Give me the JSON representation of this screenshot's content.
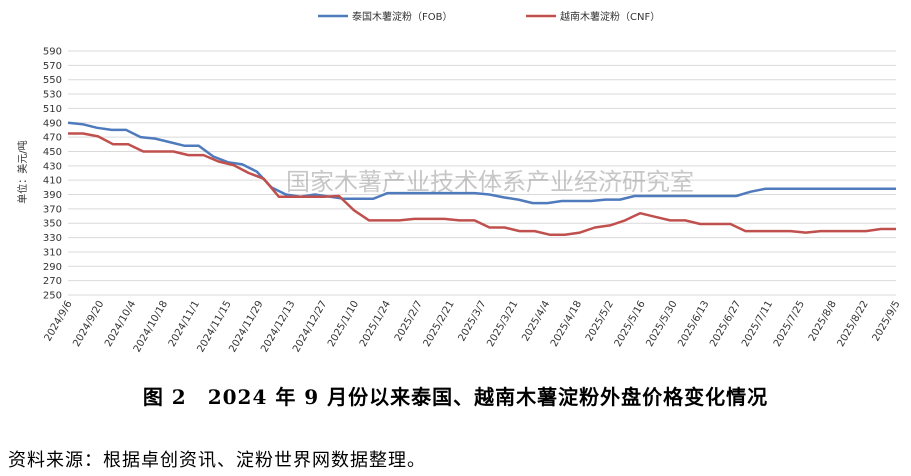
{
  "chart_data": {
    "type": "line",
    "ylabel": "单位：美元/吨",
    "ylim": [
      250,
      590
    ],
    "yticks": [
      250,
      270,
      290,
      310,
      330,
      350,
      370,
      390,
      410,
      430,
      450,
      470,
      490,
      510,
      530,
      550,
      570,
      590
    ],
    "xtick_labels": [
      "2024/9/6",
      "2024/9/20",
      "2024/10/4",
      "2024/10/18",
      "2024/11/1",
      "2024/11/15",
      "2024/11/29",
      "2024/12/13",
      "2024/12/27",
      "2025/1/10",
      "2025/1/24",
      "2025/2/7",
      "2025/2/21",
      "2025/3/7",
      "2025/3/21",
      "2025/4/4",
      "2025/4/18",
      "2025/5/2",
      "2025/5/16",
      "2025/5/30",
      "2025/6/13",
      "2025/6/27",
      "2025/7/11",
      "2025/7/25",
      "2025/8/8",
      "2025/8/22",
      "2025/9/5"
    ],
    "grid": true,
    "legend_position": "top",
    "watermark": "国家木薯产业技术体系产业经济研究室",
    "series": [
      {
        "name": "泰国木薯淀粉（FOB）",
        "color": "#4f7bbd",
        "values": [
          490,
          488,
          483,
          480,
          480,
          470,
          468,
          463,
          458,
          458,
          443,
          435,
          432,
          422,
          400,
          390,
          387,
          390,
          387,
          384,
          384,
          384,
          392,
          392,
          392,
          392,
          392,
          392,
          392,
          390,
          386,
          383,
          378,
          378,
          381,
          381,
          381,
          383,
          383,
          388,
          388,
          388,
          388,
          388,
          388,
          388,
          388,
          394,
          398,
          398,
          398,
          398,
          398,
          398,
          398,
          398,
          398,
          398
        ]
      },
      {
        "name": "越南木薯淀粉（CNF）",
        "color": "#c0504d",
        "values": [
          475,
          475,
          471,
          460,
          460,
          450,
          450,
          450,
          445,
          445,
          436,
          431,
          420,
          412,
          387,
          387,
          387,
          387,
          388,
          368,
          354,
          354,
          354,
          356,
          356,
          356,
          354,
          354,
          344,
          344,
          339,
          339,
          334,
          334,
          337,
          344,
          347,
          354,
          364,
          359,
          354,
          354,
          349,
          349,
          349,
          339,
          339,
          339,
          339,
          337,
          339,
          339,
          339,
          339,
          342,
          342
        ]
      }
    ]
  },
  "caption": "图 2　2024 年 9 月份以来泰国、越南木薯淀粉外盘价格变化情况",
  "source": "资料来源：根据卓创资讯、淀粉世界网数据整理。"
}
